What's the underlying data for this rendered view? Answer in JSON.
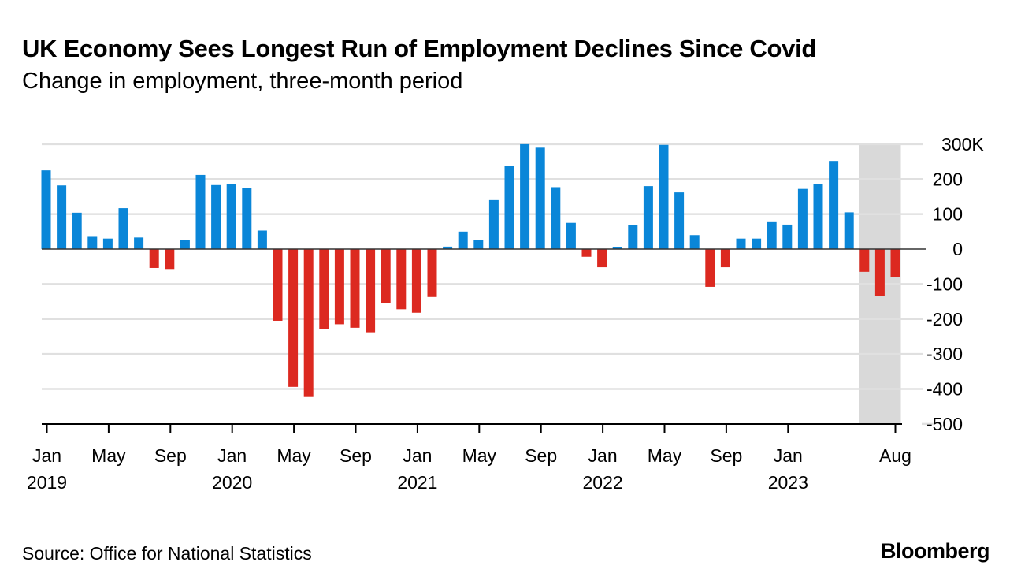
{
  "title": "UK Economy Sees Longest Run of Employment Declines Since Covid",
  "subtitle": "Change in employment, three-month period",
  "source": "Source: Office for National Statistics",
  "logo": "Bloomberg",
  "colors": {
    "positive": "#0a86d8",
    "negative": "#dc2920",
    "shade": "#d9d9d9",
    "grid": "#e0e0e0"
  },
  "chart_data": {
    "type": "bar",
    "title": "UK Economy Sees Longest Run of Employment Declines Since Covid",
    "subtitle": "Change in employment, three-month period",
    "xlabel": "",
    "ylabel": "",
    "ylim": [
      -500,
      300
    ],
    "y_ticks": [
      {
        "value": 300,
        "label": "300K"
      },
      {
        "value": 200,
        "label": "200"
      },
      {
        "value": 100,
        "label": "100"
      },
      {
        "value": 0,
        "label": "0"
      },
      {
        "value": -100,
        "label": "-100"
      },
      {
        "value": -200,
        "label": "-200"
      },
      {
        "value": -300,
        "label": "-300"
      },
      {
        "value": -400,
        "label": "-400"
      },
      {
        "value": -500,
        "label": "-500"
      }
    ],
    "x_start": "Jan 2019",
    "x_end": "Aug 2023",
    "x_ticks": [
      {
        "index": 0,
        "label": "Jan",
        "year": "2019"
      },
      {
        "index": 4,
        "label": "May",
        "year": ""
      },
      {
        "index": 8,
        "label": "Sep",
        "year": ""
      },
      {
        "index": 12,
        "label": "Jan",
        "year": "2020"
      },
      {
        "index": 16,
        "label": "May",
        "year": ""
      },
      {
        "index": 20,
        "label": "Sep",
        "year": ""
      },
      {
        "index": 24,
        "label": "Jan",
        "year": "2021"
      },
      {
        "index": 28,
        "label": "May",
        "year": ""
      },
      {
        "index": 32,
        "label": "Sep",
        "year": ""
      },
      {
        "index": 36,
        "label": "Jan",
        "year": "2022"
      },
      {
        "index": 40,
        "label": "May",
        "year": ""
      },
      {
        "index": 44,
        "label": "Sep",
        "year": ""
      },
      {
        "index": 48,
        "label": "Jan",
        "year": "2023"
      },
      {
        "index": 55,
        "label": "Aug",
        "year": ""
      }
    ],
    "shaded_range": {
      "from_index": 53,
      "to_index": 55,
      "note": "Jun-Aug 2023"
    },
    "values": [
      225,
      182,
      104,
      35,
      30,
      117,
      33,
      -54,
      -57,
      25,
      212,
      183,
      186,
      175,
      53,
      -205,
      -394,
      -423,
      -228,
      -215,
      -225,
      -238,
      -155,
      -172,
      -182,
      -137,
      7,
      50,
      25,
      140,
      238,
      300,
      290,
      177,
      75,
      -22,
      -52,
      5,
      68,
      180,
      298,
      162,
      40,
      -108,
      -52,
      30,
      30,
      77,
      70,
      172,
      185,
      252,
      105,
      -65,
      -133,
      -80
    ],
    "grid": true,
    "legend": "none"
  }
}
